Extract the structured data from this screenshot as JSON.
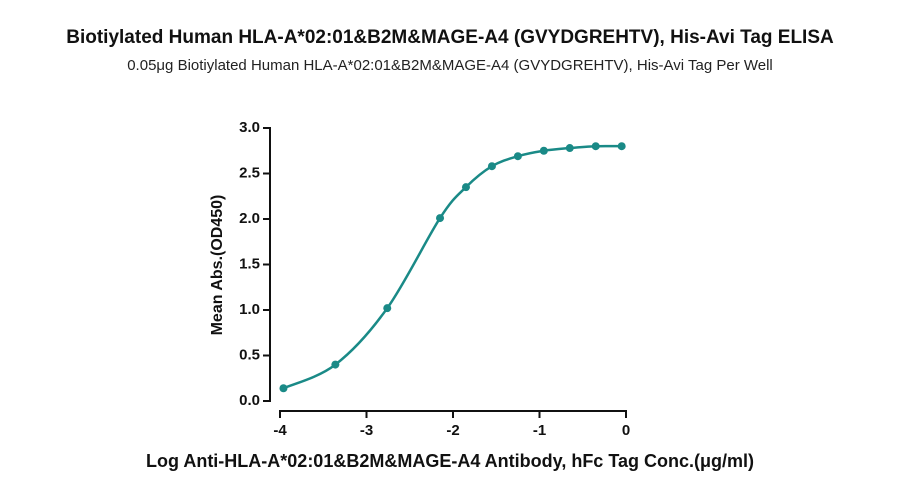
{
  "chart_data": {
    "type": "scatter",
    "title": "Biotiylated Human HLA-A*02:01&B2M&MAGE-A4 (GVYDGREHTV), His-Avi Tag ELISA",
    "subtitle": "0.05μg Biotiylated Human HLA-A*02:01&B2M&MAGE-A4 (GVYDGREHTV), His-Avi Tag Per Well",
    "x_label": "Log Anti-HLA-A*02:01&B2M&MAGE-A4 Antibody, hFc Tag Conc.(μg/ml)",
    "y_label": "Mean Abs.(OD450)",
    "color": "#1a8a87",
    "x": [
      -3.96,
      -3.36,
      -2.76,
      -2.15,
      -1.85,
      -1.55,
      -1.25,
      -0.95,
      -0.65,
      -0.35,
      -0.05
    ],
    "values": [
      0.14,
      0.4,
      1.02,
      2.01,
      2.35,
      2.58,
      2.69,
      2.75,
      2.78,
      2.8,
      2.8
    ],
    "xlim": [
      -4,
      0
    ],
    "xticks": [
      -4,
      -3,
      -2,
      -1,
      0
    ],
    "ylim": [
      0,
      3
    ],
    "yticks": [
      {
        "value": 0,
        "label": "0.0"
      },
      0.5,
      {
        "value": 1,
        "label": "1.0"
      },
      1.5,
      {
        "value": 2,
        "label": "2.0"
      },
      2.5,
      {
        "value": 3,
        "label": "3.0"
      }
    ]
  }
}
